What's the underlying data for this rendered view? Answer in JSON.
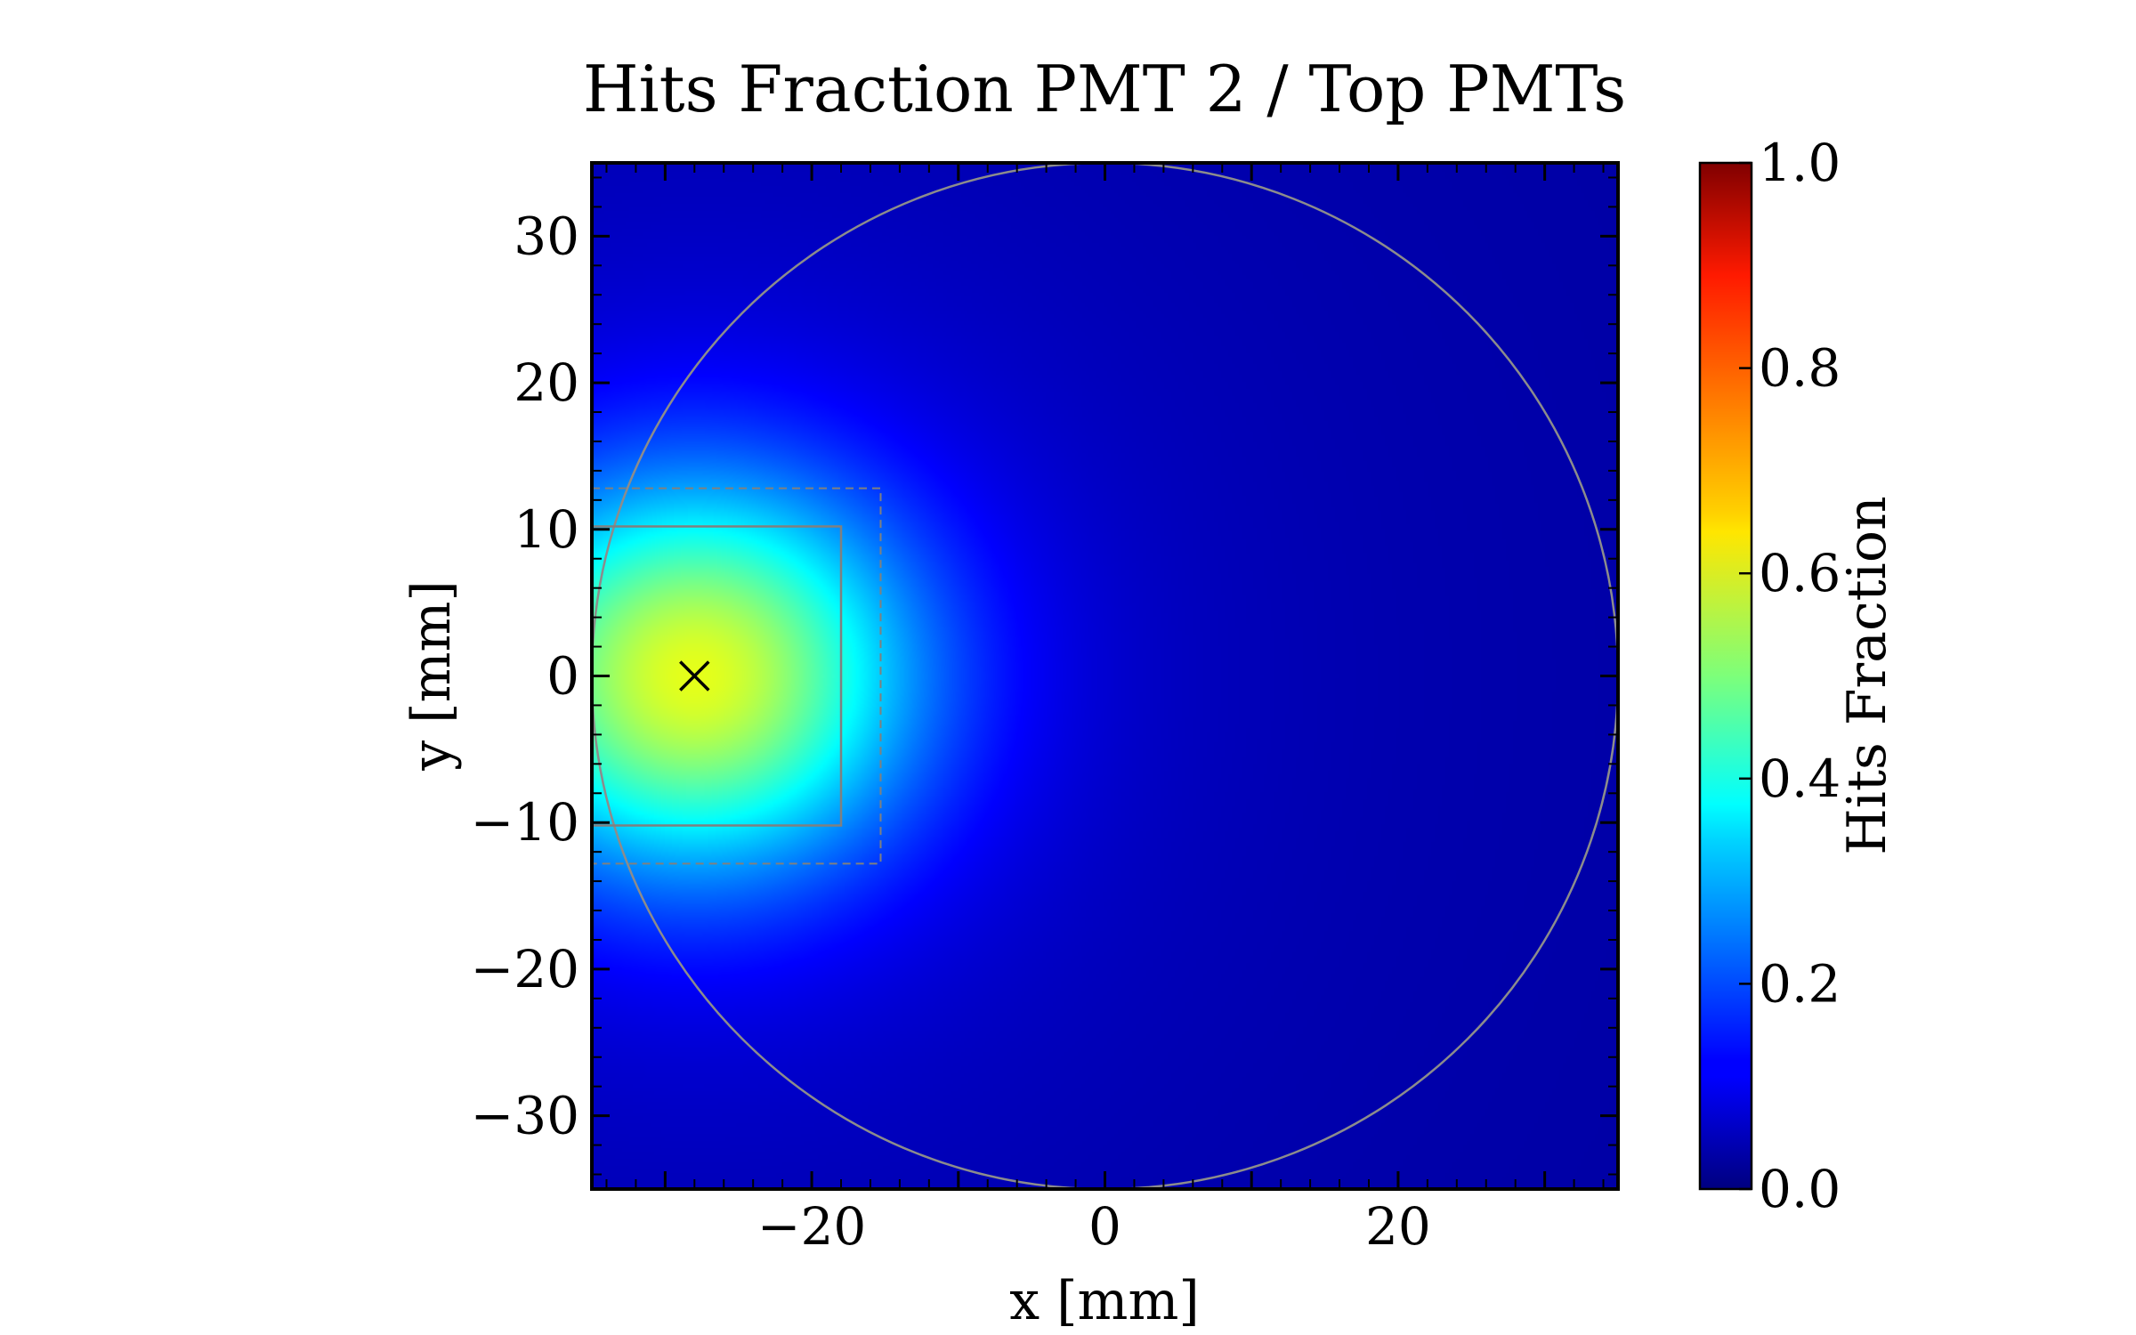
{
  "chart_data": {
    "type": "heatmap",
    "title": "Hits Fraction PMT 2 / Top PMTs",
    "xlabel": "x [mm]",
    "ylabel": "y [mm]",
    "xlim": [
      -35,
      35
    ],
    "ylim": [
      -35,
      35
    ],
    "xticks": [
      -20,
      0,
      20
    ],
    "yticks": [
      -30,
      -20,
      -10,
      0,
      10,
      20,
      30
    ],
    "xtick_labels": [
      "−20",
      "0",
      "20"
    ],
    "ytick_labels": [
      "−30",
      "−20",
      "−10",
      "0",
      "10",
      "20",
      "30"
    ],
    "colorbar": {
      "label": "Hits Fraction",
      "colormap": "jet",
      "range": [
        0.0,
        1.0
      ],
      "ticks": [
        0.0,
        0.2,
        0.4,
        0.6,
        0.8,
        1.0
      ],
      "tick_labels": [
        "0.0",
        "0.2",
        "0.4",
        "0.6",
        "0.8",
        "1.0"
      ]
    },
    "field": {
      "peak_position": [
        -28,
        0
      ],
      "peak_value": 0.6,
      "far_value": 0.03,
      "description_values": [
        {
          "x": -28,
          "y": 0,
          "value": 0.6
        },
        {
          "x": -18,
          "y": 0,
          "value": 0.45
        },
        {
          "x": -10,
          "y": 0,
          "value": 0.2
        },
        {
          "x": 0,
          "y": 0,
          "value": 0.1
        },
        {
          "x": 20,
          "y": 0,
          "value": 0.05
        },
        {
          "x": 33,
          "y": 0,
          "value": 0.03
        }
      ]
    },
    "overlays": {
      "circle": {
        "center": [
          0,
          0
        ],
        "radius": 35,
        "color": "#8c8c8c"
      },
      "pmt_box_solid": {
        "x": [
          -35,
          -18
        ],
        "y": [
          -10.2,
          10.2
        ],
        "color": "#808080",
        "style": "solid"
      },
      "pmt_box_dashed": {
        "x": [
          -35,
          -15.3
        ],
        "y": [
          -12.8,
          12.8
        ],
        "color": "#808080",
        "style": "dashed"
      },
      "marker": {
        "x": -28,
        "y": 0,
        "symbol": "×"
      }
    },
    "grid": false
  }
}
